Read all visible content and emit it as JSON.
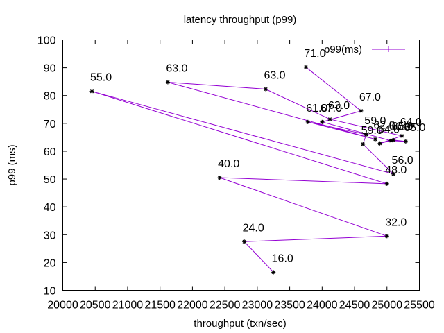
{
  "chart_data": {
    "type": "line",
    "title": "latency throughput (p99)",
    "xlabel": "throughput (txn/sec)",
    "ylabel": "p99 (ms)",
    "xlim": [
      20000,
      25500
    ],
    "ylim": [
      10,
      100
    ],
    "xticks": [
      20000,
      20500,
      21000,
      21500,
      22000,
      22500,
      23000,
      23500,
      24000,
      24500,
      25000,
      25500
    ],
    "yticks": [
      10,
      20,
      30,
      40,
      50,
      60,
      70,
      80,
      90,
      100
    ],
    "grid": false,
    "legend": "top-right",
    "color": "#9400d3",
    "series": [
      {
        "name": "p99(ms)",
        "points": [
          {
            "x": 23250,
            "y": 16.5,
            "label": "16.0"
          },
          {
            "x": 22800,
            "y": 27.5,
            "label": "24.0"
          },
          {
            "x": 25000,
            "y": 29.5,
            "label": "32.0"
          },
          {
            "x": 22420,
            "y": 50.5,
            "label": "40.0"
          },
          {
            "x": 25000,
            "y": 48.3,
            "label": "48.0"
          },
          {
            "x": 20450,
            "y": 81.5,
            "label": "55.0"
          },
          {
            "x": 25100,
            "y": 51.8,
            "label": "56.0"
          },
          {
            "x": 24630,
            "y": 62.5,
            "label": "59.0"
          },
          {
            "x": 24680,
            "y": 66.0,
            "label": "59.0"
          },
          {
            "x": 23780,
            "y": 70.5,
            "label": "61.0"
          },
          {
            "x": 24820,
            "y": 64.3,
            "label": "62.0"
          },
          {
            "x": 21620,
            "y": 84.8,
            "label": "63.0"
          },
          {
            "x": 23130,
            "y": 82.3,
            "label": "63.0"
          },
          {
            "x": 24120,
            "y": 71.5,
            "label": "63.0"
          },
          {
            "x": 25230,
            "y": 65.5,
            "label": "64.0"
          },
          {
            "x": 24890,
            "y": 62.8,
            "label": "64.0"
          },
          {
            "x": 25100,
            "y": 64.0,
            "label": "65.0"
          },
          {
            "x": 25290,
            "y": 63.5,
            "label": "65.0"
          },
          {
            "x": 25060,
            "y": 63.8,
            "label": "66.0"
          },
          {
            "x": 24000,
            "y": 70.5,
            "label": "67.0"
          },
          {
            "x": 24600,
            "y": 74.5,
            "label": "67.0"
          },
          {
            "x": 23750,
            "y": 90.2,
            "label": "71.0"
          }
        ]
      }
    ]
  }
}
